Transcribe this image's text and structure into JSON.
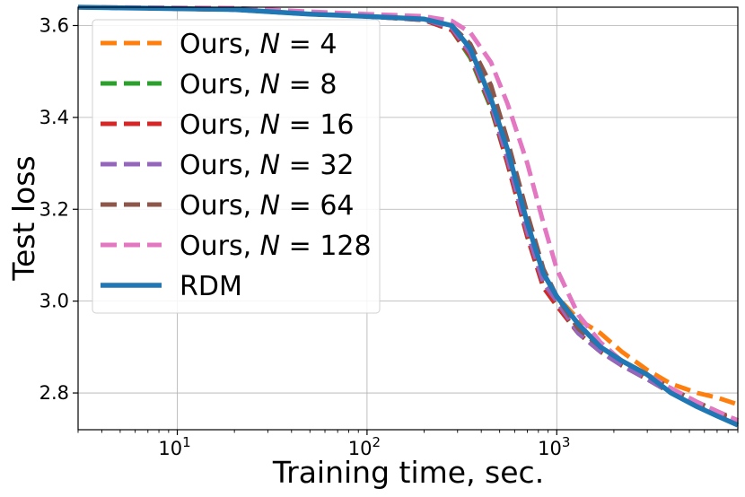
{
  "chart_data": {
    "type": "line",
    "xscale": "log",
    "xlabel": "Training time, sec.",
    "ylabel": "Test loss",
    "xlim": [
      3,
      9000
    ],
    "ylim": [
      2.72,
      3.64
    ],
    "x_ticks": [
      {
        "value": 10,
        "base": "10",
        "exp": "1"
      },
      {
        "value": 100,
        "base": "10",
        "exp": "2"
      },
      {
        "value": 1000,
        "base": "10",
        "exp": "3"
      }
    ],
    "y_ticks": [
      {
        "value": 3.6,
        "label": "3.6"
      },
      {
        "value": 3.4,
        "label": "3.4"
      },
      {
        "value": 3.2,
        "label": "3.2"
      },
      {
        "value": 3.0,
        "label": "3.0"
      },
      {
        "value": 2.8,
        "label": "2.8"
      }
    ],
    "grid": true,
    "legend_position": "upper-left",
    "series": [
      {
        "id": "n4",
        "prefix": "Ours, ",
        "var": "N",
        "eq": " = ",
        "num": "4",
        "color": "#ff7f0e",
        "style": "dashed",
        "points": [
          [
            3,
            3.64
          ],
          [
            20,
            3.635
          ],
          [
            50,
            3.625
          ],
          [
            100,
            3.62
          ],
          [
            200,
            3.615
          ],
          [
            280,
            3.6
          ],
          [
            350,
            3.55
          ],
          [
            450,
            3.45
          ],
          [
            550,
            3.33
          ],
          [
            700,
            3.17
          ],
          [
            850,
            3.06
          ],
          [
            1000,
            3.01
          ],
          [
            1300,
            2.96
          ],
          [
            1700,
            2.93
          ],
          [
            2200,
            2.89
          ],
          [
            3000,
            2.85
          ],
          [
            4000,
            2.82
          ],
          [
            5500,
            2.8
          ],
          [
            7000,
            2.79
          ],
          [
            9000,
            2.775
          ]
        ]
      },
      {
        "id": "n8",
        "prefix": "Ours, ",
        "var": "N",
        "eq": " = ",
        "num": "8",
        "color": "#2ca02c",
        "style": "dashed",
        "points": [
          [
            3,
            3.64
          ],
          [
            20,
            3.635
          ],
          [
            50,
            3.625
          ],
          [
            100,
            3.62
          ],
          [
            200,
            3.612
          ],
          [
            280,
            3.59
          ],
          [
            350,
            3.53
          ],
          [
            450,
            3.42
          ],
          [
            550,
            3.3
          ],
          [
            700,
            3.14
          ],
          [
            850,
            3.03
          ],
          [
            1000,
            2.99
          ],
          [
            1300,
            2.93
          ],
          [
            1700,
            2.89
          ],
          [
            2200,
            2.86
          ],
          [
            3000,
            2.83
          ],
          [
            4000,
            2.8
          ],
          [
            5500,
            2.77
          ],
          [
            7000,
            2.75
          ],
          [
            9000,
            2.735
          ]
        ]
      },
      {
        "id": "n16",
        "prefix": "Ours, ",
        "var": "N",
        "eq": " = ",
        "num": "16",
        "color": "#d62728",
        "style": "dashed",
        "points": [
          [
            3,
            3.64
          ],
          [
            20,
            3.635
          ],
          [
            50,
            3.625
          ],
          [
            100,
            3.62
          ],
          [
            200,
            3.612
          ],
          [
            280,
            3.59
          ],
          [
            350,
            3.535
          ],
          [
            450,
            3.425
          ],
          [
            550,
            3.3
          ],
          [
            700,
            3.14
          ],
          [
            850,
            3.03
          ],
          [
            1000,
            2.99
          ],
          [
            1300,
            2.93
          ],
          [
            1700,
            2.89
          ],
          [
            2200,
            2.86
          ],
          [
            3000,
            2.83
          ],
          [
            4000,
            2.8
          ],
          [
            5500,
            2.77
          ],
          [
            7000,
            2.755
          ],
          [
            9000,
            2.74
          ]
        ]
      },
      {
        "id": "n32",
        "prefix": "Ours, ",
        "var": "N",
        "eq": " = ",
        "num": "32",
        "color": "#9467bd",
        "style": "dashed",
        "points": [
          [
            3,
            3.64
          ],
          [
            20,
            3.635
          ],
          [
            50,
            3.625
          ],
          [
            100,
            3.62
          ],
          [
            200,
            3.613
          ],
          [
            280,
            3.595
          ],
          [
            350,
            3.54
          ],
          [
            450,
            3.43
          ],
          [
            550,
            3.31
          ],
          [
            700,
            3.15
          ],
          [
            850,
            3.04
          ],
          [
            1000,
            3.0
          ],
          [
            1300,
            2.93
          ],
          [
            1700,
            2.89
          ],
          [
            2200,
            2.86
          ],
          [
            3000,
            2.83
          ],
          [
            4000,
            2.8
          ],
          [
            5500,
            2.77
          ],
          [
            7000,
            2.75
          ],
          [
            9000,
            2.735
          ]
        ]
      },
      {
        "id": "n64",
        "prefix": "Ours, ",
        "var": "N",
        "eq": " = ",
        "num": "64",
        "color": "#8c564b",
        "style": "dashed",
        "points": [
          [
            3,
            3.64
          ],
          [
            20,
            3.635
          ],
          [
            50,
            3.625
          ],
          [
            100,
            3.62
          ],
          [
            200,
            3.614
          ],
          [
            280,
            3.6
          ],
          [
            350,
            3.56
          ],
          [
            450,
            3.47
          ],
          [
            550,
            3.35
          ],
          [
            700,
            3.19
          ],
          [
            850,
            3.07
          ],
          [
            1000,
            3.01
          ],
          [
            1300,
            2.94
          ],
          [
            1700,
            2.9
          ],
          [
            2200,
            2.87
          ],
          [
            3000,
            2.84
          ],
          [
            4000,
            2.81
          ],
          [
            5500,
            2.78
          ],
          [
            7000,
            2.76
          ],
          [
            9000,
            2.74
          ]
        ]
      },
      {
        "id": "n128",
        "prefix": "Ours, ",
        "var": "N",
        "eq": " = ",
        "num": "128",
        "color": "#e377c2",
        "style": "dashed",
        "points": [
          [
            3,
            3.64
          ],
          [
            20,
            3.638
          ],
          [
            50,
            3.63
          ],
          [
            100,
            3.625
          ],
          [
            200,
            3.62
          ],
          [
            280,
            3.61
          ],
          [
            350,
            3.585
          ],
          [
            450,
            3.52
          ],
          [
            550,
            3.43
          ],
          [
            700,
            3.3
          ],
          [
            850,
            3.17
          ],
          [
            1000,
            3.07
          ],
          [
            1300,
            2.97
          ],
          [
            1700,
            2.91
          ],
          [
            2200,
            2.87
          ],
          [
            3000,
            2.84
          ],
          [
            4000,
            2.81
          ],
          [
            5500,
            2.78
          ],
          [
            7000,
            2.76
          ],
          [
            9000,
            2.74
          ]
        ]
      },
      {
        "id": "rdm",
        "label": "RDM",
        "color": "#1f77b4",
        "style": "solid",
        "points": [
          [
            3,
            3.64
          ],
          [
            20,
            3.635
          ],
          [
            50,
            3.625
          ],
          [
            100,
            3.62
          ],
          [
            200,
            3.614
          ],
          [
            280,
            3.6
          ],
          [
            350,
            3.55
          ],
          [
            450,
            3.44
          ],
          [
            550,
            3.33
          ],
          [
            700,
            3.17
          ],
          [
            850,
            3.06
          ],
          [
            1000,
            3.01
          ],
          [
            1300,
            2.95
          ],
          [
            1700,
            2.9
          ],
          [
            2200,
            2.87
          ],
          [
            3000,
            2.84
          ],
          [
            4000,
            2.8
          ],
          [
            5500,
            2.77
          ],
          [
            7000,
            2.75
          ],
          [
            9000,
            2.73
          ]
        ]
      }
    ]
  }
}
